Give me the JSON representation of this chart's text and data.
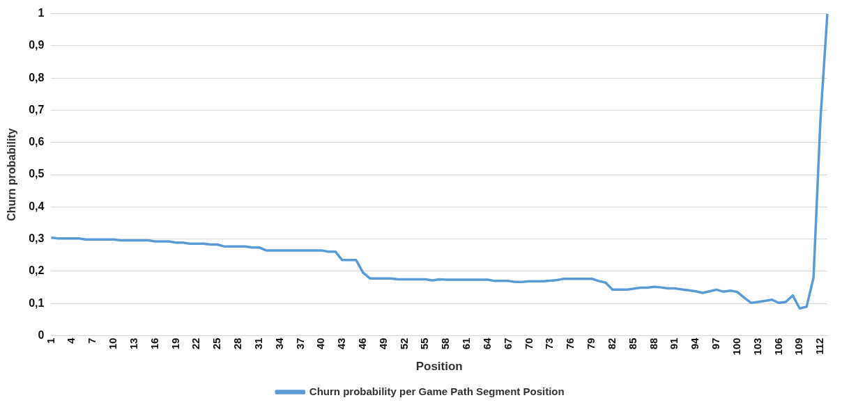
{
  "chart_data": {
    "type": "line",
    "xlabel": "Position",
    "ylabel": "Churn probability",
    "categories": [
      "1",
      null,
      null,
      "4",
      null,
      null,
      "7",
      null,
      null,
      "10",
      null,
      null,
      "13",
      null,
      null,
      "16",
      null,
      null,
      "19",
      null,
      null,
      "22",
      null,
      null,
      "25",
      null,
      null,
      "28",
      null,
      null,
      "31",
      null,
      null,
      "34",
      null,
      null,
      "37",
      null,
      null,
      "40",
      null,
      null,
      "43",
      null,
      null,
      "46",
      null,
      null,
      "49",
      null,
      null,
      "52",
      null,
      null,
      "55",
      null,
      null,
      "58",
      null,
      null,
      "61",
      null,
      null,
      "64",
      null,
      null,
      "67",
      null,
      null,
      "70",
      null,
      null,
      "73",
      null,
      null,
      "76",
      null,
      null,
      "79",
      null,
      null,
      "82",
      null,
      null,
      "85",
      null,
      null,
      "88",
      null,
      null,
      "91",
      null,
      null,
      "94",
      null,
      null,
      "97",
      null,
      null,
      "100",
      null,
      null,
      "103",
      null,
      null,
      "106",
      null,
      null,
      "109",
      null,
      null,
      "112",
      null
    ],
    "series": [
      {
        "name": "Churn probability per Game Path Segment Position",
        "color": "#5b9bd5",
        "values": [
          0.305,
          0.302,
          0.302,
          0.302,
          0.302,
          0.299,
          0.299,
          0.299,
          0.299,
          0.299,
          0.296,
          0.296,
          0.296,
          0.296,
          0.296,
          0.293,
          0.293,
          0.293,
          0.289,
          0.289,
          0.286,
          0.286,
          0.286,
          0.283,
          0.283,
          0.277,
          0.277,
          0.277,
          0.277,
          0.274,
          0.274,
          0.265,
          0.265,
          0.265,
          0.265,
          0.265,
          0.265,
          0.265,
          0.265,
          0.265,
          0.261,
          0.261,
          0.235,
          0.235,
          0.235,
          0.196,
          0.178,
          0.178,
          0.178,
          0.178,
          0.175,
          0.175,
          0.175,
          0.175,
          0.175,
          0.172,
          0.175,
          0.174,
          0.174,
          0.174,
          0.174,
          0.174,
          0.174,
          0.174,
          0.17,
          0.17,
          0.17,
          0.167,
          0.167,
          0.169,
          0.169,
          0.169,
          0.171,
          0.173,
          0.177,
          0.177,
          0.177,
          0.177,
          0.177,
          0.17,
          0.165,
          0.143,
          0.143,
          0.143,
          0.146,
          0.149,
          0.149,
          0.152,
          0.15,
          0.147,
          0.147,
          0.144,
          0.141,
          0.138,
          0.133,
          0.138,
          0.143,
          0.137,
          0.14,
          0.136,
          0.118,
          0.102,
          0.105,
          0.108,
          0.112,
          0.102,
          0.105,
          0.125,
          0.085,
          0.09,
          0.18,
          0.67,
          1
        ]
      }
    ],
    "ylim": [
      0,
      1
    ],
    "yticks": [
      0,
      {
        "value": 0.1,
        "label": "0,1"
      },
      {
        "value": 0.2,
        "label": "0,2"
      },
      {
        "value": 0.3,
        "label": "0,3"
      },
      {
        "value": 0.4,
        "label": "0,4"
      },
      {
        "value": 0.5,
        "label": "0,5"
      },
      {
        "value": 0.6,
        "label": "0,6"
      },
      {
        "value": 0.7,
        "label": "0,7"
      },
      {
        "value": 0.8,
        "label": "0,8"
      },
      {
        "value": 0.9,
        "label": "0,9"
      },
      1
    ],
    "grid": "y",
    "legend": "bottom",
    "marker": "none",
    "line_style": "solid"
  }
}
